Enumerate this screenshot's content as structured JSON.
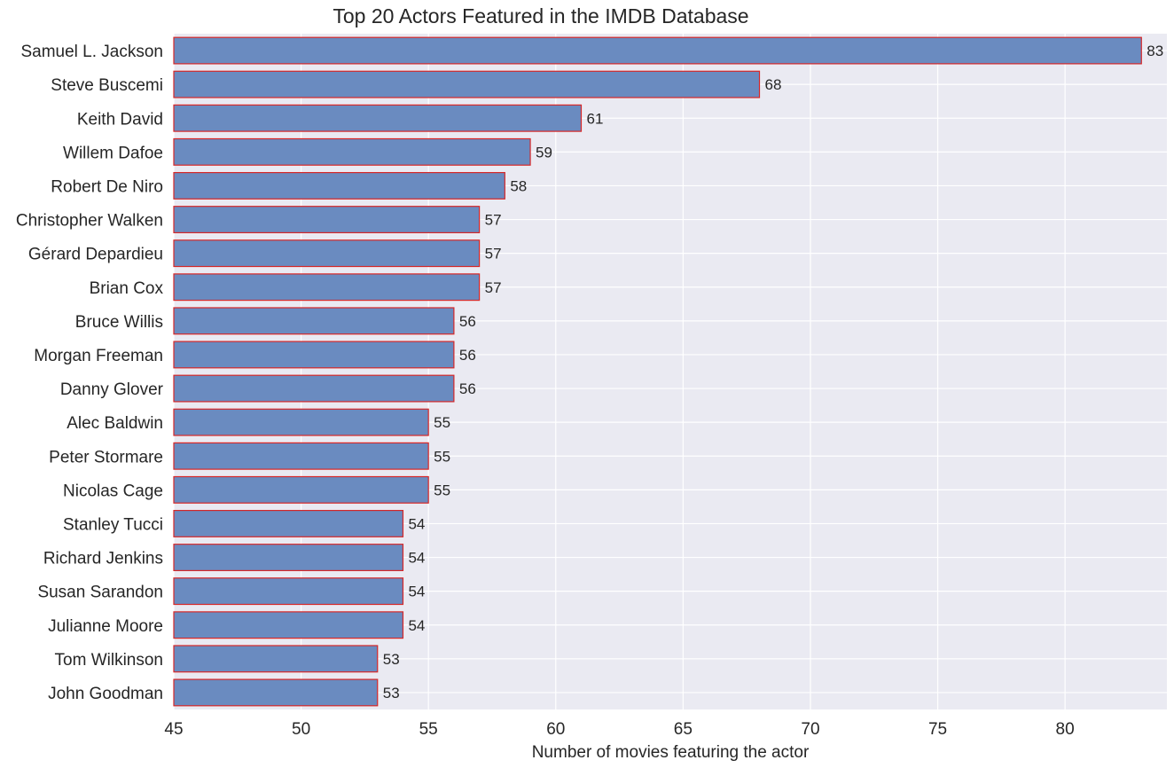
{
  "chart_data": {
    "type": "bar",
    "orientation": "horizontal",
    "title": "Top 20 Actors Featured in the IMDB Database",
    "xlabel": "Number of movies featuring the actor",
    "ylabel": "",
    "xlim": [
      45,
      84
    ],
    "xticks": [
      45,
      50,
      55,
      60,
      65,
      70,
      75,
      80
    ],
    "grid": true,
    "colors": {
      "bar_fill": "#6a8bc0",
      "bar_edge": "#d62728",
      "background": "#eaeaf2",
      "grid": "#ffffff"
    },
    "categories": [
      "Samuel L. Jackson",
      "Steve Buscemi",
      "Keith David",
      "Willem Dafoe",
      "Robert De Niro",
      "Christopher Walken",
      "Gérard Depardieu",
      "Brian Cox",
      "Bruce Willis",
      "Morgan Freeman",
      "Danny Glover",
      "Alec Baldwin",
      "Peter Stormare",
      "Nicolas Cage",
      "Stanley Tucci",
      "Richard Jenkins",
      "Susan Sarandon",
      "Julianne Moore",
      "Tom Wilkinson",
      "John Goodman"
    ],
    "values": [
      83,
      68,
      61,
      59,
      58,
      57,
      57,
      57,
      56,
      56,
      56,
      55,
      55,
      55,
      54,
      54,
      54,
      54,
      53,
      53
    ]
  }
}
